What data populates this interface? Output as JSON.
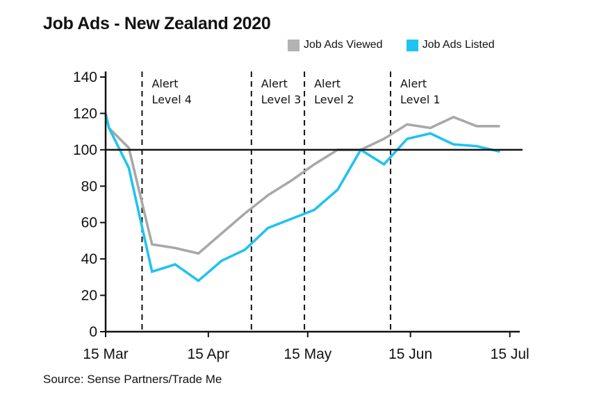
{
  "chart_data": {
    "type": "line",
    "title": "Job Ads - New Zealand 2020",
    "source": "Source: Sense Partners/Trade Me",
    "xlabel": "",
    "ylabel": "",
    "ylim": [
      0,
      140
    ],
    "yticks": [
      0,
      20,
      40,
      60,
      80,
      100,
      120,
      140
    ],
    "x_tick_labels": [
      "15 Mar",
      "15 Apr",
      "15 May",
      "15 Jun",
      "15 Jul"
    ],
    "x_tick_dates": [
      "2020-03-15",
      "2020-04-15",
      "2020-05-15",
      "2020-06-15",
      "2020-07-15"
    ],
    "xlim": [
      "2020-03-15",
      "2020-07-18"
    ],
    "reference_line": 100,
    "legend_position": "top-right",
    "legend": [
      {
        "name": "Job Ads Viewed",
        "color": "#b3b3b3"
      },
      {
        "name": "Job Ads Listed",
        "color": "#1fc3ef"
      }
    ],
    "series": [
      {
        "name": "Job Ads Viewed",
        "color": "#a8a8a8",
        "x": [
          "2020-03-15",
          "2020-03-16",
          "2020-03-22",
          "2020-03-29",
          "2020-04-05",
          "2020-04-12",
          "2020-04-19",
          "2020-04-26",
          "2020-05-03",
          "2020-05-10",
          "2020-05-17",
          "2020-05-24",
          "2020-05-31",
          "2020-06-07",
          "2020-06-14",
          "2020-06-21",
          "2020-06-28",
          "2020-07-05",
          "2020-07-12"
        ],
        "values": [
          119,
          112,
          101,
          48,
          46,
          43,
          54,
          65,
          75,
          83,
          92,
          100,
          100,
          106,
          114,
          112,
          118,
          113,
          113
        ]
      },
      {
        "name": "Job Ads Listed",
        "color": "#1fc3ef",
        "x": [
          "2020-03-15",
          "2020-03-16",
          "2020-03-22",
          "2020-03-29",
          "2020-04-05",
          "2020-04-12",
          "2020-04-19",
          "2020-04-26",
          "2020-05-03",
          "2020-05-10",
          "2020-05-17",
          "2020-05-24",
          "2020-05-31",
          "2020-06-07",
          "2020-06-14",
          "2020-06-21",
          "2020-06-28",
          "2020-07-05",
          "2020-07-12"
        ],
        "values": [
          120,
          112,
          90,
          33,
          37,
          28,
          39,
          45,
          57,
          62,
          67,
          78,
          100,
          92,
          106,
          109,
          103,
          102,
          99
        ]
      }
    ],
    "alert_levels": [
      {
        "label": [
          "Alert",
          "Level 4"
        ],
        "date": "2020-03-26"
      },
      {
        "label": [
          "Alert",
          "Level 3"
        ],
        "date": "2020-04-28"
      },
      {
        "label": [
          "Alert",
          "Level 2"
        ],
        "date": "2020-05-14"
      },
      {
        "label": [
          "Alert",
          "Level 1"
        ],
        "date": "2020-06-09"
      }
    ]
  }
}
